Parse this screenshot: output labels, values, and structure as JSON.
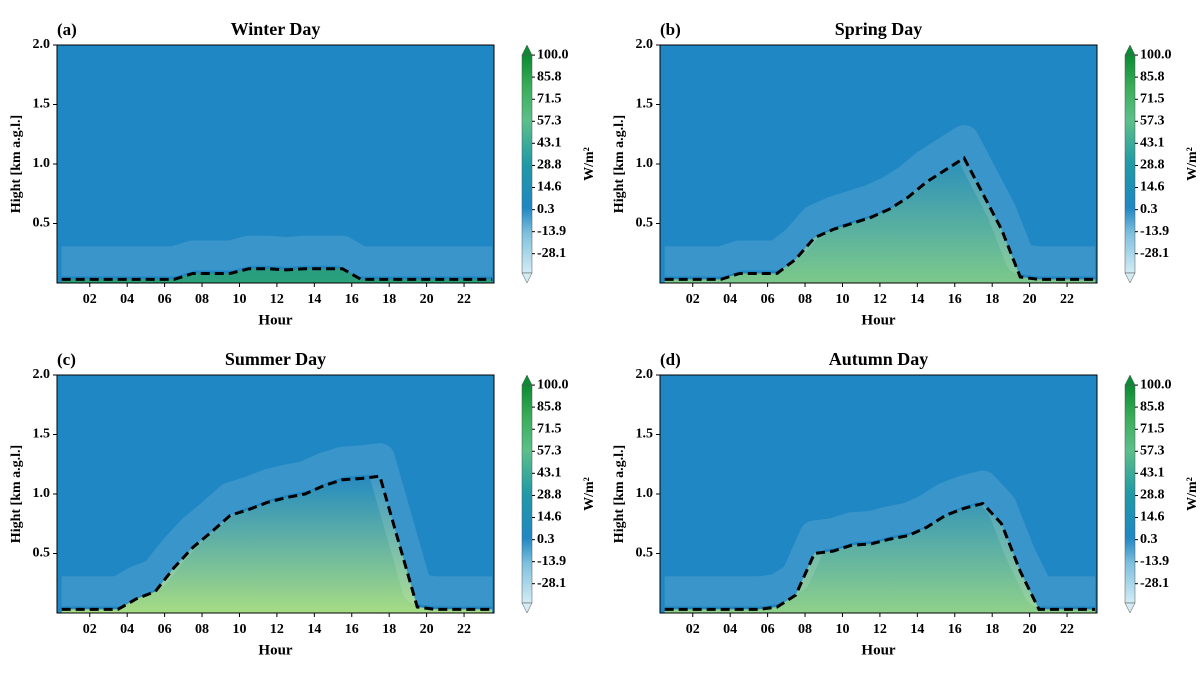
{
  "chart_data": [
    {
      "type": "contour",
      "panel": "(a)",
      "title": "Winter Day",
      "xlabel": "Hour",
      "ylabel": "Hight [km a.g.l.]",
      "xlim": [
        0.25,
        23.6
      ],
      "ylim": [
        0,
        2
      ],
      "xticks": [
        {
          "value": 2,
          "label": "02"
        },
        {
          "value": 4,
          "label": "04"
        },
        {
          "value": 6,
          "label": "06"
        },
        {
          "value": 8,
          "label": "08"
        },
        10,
        12,
        14,
        16,
        18,
        20,
        22
      ],
      "yticks": [
        0.5,
        {
          "value": 1,
          "label": "1.0"
        },
        1.5,
        {
          "value": 2,
          "label": "2.0"
        }
      ],
      "x": [
        0.5,
        1.5,
        2.5,
        3.5,
        4.5,
        5.5,
        6.5,
        7.5,
        8.5,
        9.5,
        10.5,
        11.5,
        12.5,
        13.5,
        14.5,
        15.5,
        16.5,
        17.5,
        18.5,
        19.5,
        20.5,
        21.5,
        22.5,
        23.5
      ],
      "values": [
        0.03,
        0.03,
        0.03,
        0.03,
        0.03,
        0.03,
        0.03,
        0.08,
        0.08,
        0.08,
        0.12,
        0.12,
        0.11,
        0.12,
        0.12,
        0.12,
        0.03,
        0.03,
        0.03,
        0.03,
        0.03,
        0.03,
        0.03,
        0.03
      ],
      "line_color": "#000000",
      "background": "#1f87c3",
      "field_color": "#2aa07a",
      "colorbar": {
        "label": "W/m²",
        "lim": [
          -47,
          106.5
        ],
        "ticks": [
          {
            "value": 100,
            "label": "100.0"
          },
          85.8,
          71.5,
          57.3,
          43.1,
          28.8,
          14.6,
          0.3,
          -13.9,
          -28.1
        ]
      }
    },
    {
      "type": "contour",
      "panel": "(b)",
      "title": "Spring Day",
      "xlabel": "Hour",
      "ylabel": "Hight [km a.g.l.]",
      "xlim": [
        0.25,
        23.6
      ],
      "ylim": [
        0,
        2
      ],
      "xticks": [
        {
          "value": 2,
          "label": "02"
        },
        {
          "value": 4,
          "label": "04"
        },
        {
          "value": 6,
          "label": "06"
        },
        {
          "value": 8,
          "label": "08"
        },
        10,
        12,
        14,
        16,
        18,
        20,
        22
      ],
      "yticks": [
        0.5,
        {
          "value": 1,
          "label": "1.0"
        },
        1.5,
        {
          "value": 2,
          "label": "2.0"
        }
      ],
      "x": [
        0.5,
        1.5,
        2.5,
        3.5,
        4.5,
        5.5,
        6.5,
        7.5,
        8.5,
        9.5,
        10.5,
        11.5,
        12.5,
        13.5,
        14.5,
        15.5,
        16.5,
        17.5,
        18.5,
        19.5,
        20.5,
        21.5,
        22.5,
        23.5
      ],
      "values": [
        0.03,
        0.03,
        0.03,
        0.03,
        0.08,
        0.08,
        0.08,
        0.2,
        0.38,
        0.45,
        0.5,
        0.55,
        0.62,
        0.72,
        0.85,
        0.95,
        1.05,
        0.75,
        0.45,
        0.05,
        0.03,
        0.03,
        0.03,
        0.03
      ],
      "line_color": "#000000",
      "background": "#1f87c3",
      "field_color": "#7cc98a",
      "colorbar": {
        "label": "W/m²",
        "lim": [
          -47,
          106.5
        ],
        "ticks": [
          {
            "value": 100,
            "label": "100.0"
          },
          85.8,
          71.5,
          57.3,
          43.1,
          28.8,
          14.6,
          0.3,
          -13.9,
          -28.1
        ]
      }
    },
    {
      "type": "contour",
      "panel": "(c)",
      "title": "Summer Day",
      "xlabel": "Hour",
      "ylabel": "Hight [km a.g.l.]",
      "xlim": [
        0.25,
        23.6
      ],
      "ylim": [
        0,
        2
      ],
      "xticks": [
        {
          "value": 2,
          "label": "02"
        },
        {
          "value": 4,
          "label": "04"
        },
        {
          "value": 6,
          "label": "06"
        },
        {
          "value": 8,
          "label": "08"
        },
        10,
        12,
        14,
        16,
        18,
        20,
        22
      ],
      "yticks": [
        0.5,
        {
          "value": 1,
          "label": "1.0"
        },
        1.5,
        {
          "value": 2,
          "label": "2.0"
        }
      ],
      "x": [
        0.5,
        1.5,
        2.5,
        3.5,
        4.5,
        5.5,
        6.5,
        7.5,
        8.5,
        9.5,
        10.5,
        11.5,
        12.5,
        13.5,
        14.5,
        15.5,
        16.5,
        17.5,
        18.5,
        19.5,
        20.5,
        21.5,
        22.5,
        23.5
      ],
      "values": [
        0.03,
        0.03,
        0.03,
        0.03,
        0.12,
        0.18,
        0.38,
        0.55,
        0.68,
        0.82,
        0.87,
        0.93,
        0.97,
        1.0,
        1.07,
        1.12,
        1.13,
        1.15,
        0.6,
        0.05,
        0.03,
        0.03,
        0.03,
        0.03
      ],
      "line_color": "#000000",
      "background": "#1f87c3",
      "field_color": "#a6dc84",
      "colorbar": {
        "label": "W/m²",
        "lim": [
          -47,
          106.5
        ],
        "ticks": [
          {
            "value": 100,
            "label": "100.0"
          },
          85.8,
          71.5,
          57.3,
          43.1,
          28.8,
          14.6,
          0.3,
          -13.9,
          -28.1
        ]
      }
    },
    {
      "type": "contour",
      "panel": "(d)",
      "title": "Autumn Day",
      "xlabel": "Hour",
      "ylabel": "Hight [km a.g.l.]",
      "xlim": [
        0.25,
        23.6
      ],
      "ylim": [
        0,
        2
      ],
      "xticks": [
        {
          "value": 2,
          "label": "02"
        },
        {
          "value": 4,
          "label": "04"
        },
        {
          "value": 6,
          "label": "06"
        },
        {
          "value": 8,
          "label": "08"
        },
        10,
        12,
        14,
        16,
        18,
        20,
        22
      ],
      "yticks": [
        0.5,
        {
          "value": 1,
          "label": "1.0"
        },
        1.5,
        {
          "value": 2,
          "label": "2.0"
        }
      ],
      "x": [
        0.5,
        1.5,
        2.5,
        3.5,
        4.5,
        5.5,
        6.5,
        7.5,
        8.5,
        9.5,
        10.5,
        11.5,
        12.5,
        13.5,
        14.5,
        15.5,
        16.5,
        17.5,
        18.5,
        19.5,
        20.5,
        21.5,
        22.5,
        23.5
      ],
      "values": [
        0.03,
        0.03,
        0.03,
        0.03,
        0.03,
        0.03,
        0.05,
        0.15,
        0.5,
        0.52,
        0.57,
        0.58,
        0.62,
        0.65,
        0.72,
        0.82,
        0.88,
        0.92,
        0.75,
        0.35,
        0.03,
        0.03,
        0.03,
        0.03
      ],
      "line_color": "#000000",
      "background": "#1f87c3",
      "field_color": "#8fd18a",
      "colorbar": {
        "label": "W/m²",
        "lim": [
          -47,
          106.5
        ],
        "ticks": [
          {
            "value": 100,
            "label": "100.0"
          },
          85.8,
          71.5,
          57.3,
          43.1,
          28.8,
          14.6,
          0.3,
          -13.9,
          -28.1
        ]
      }
    }
  ]
}
